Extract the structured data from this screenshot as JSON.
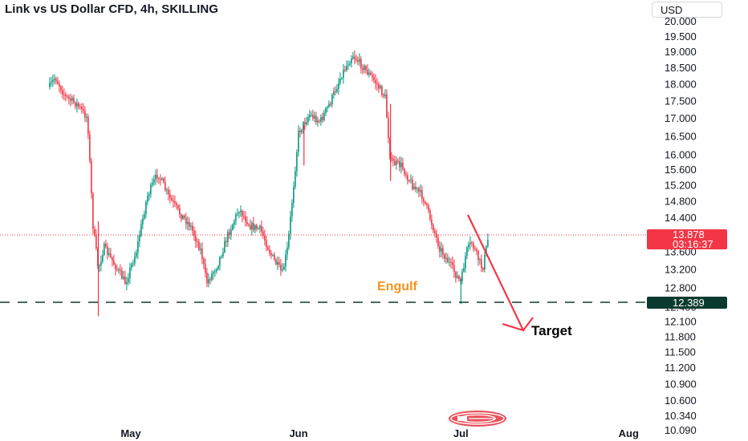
{
  "header": {
    "title": "Link vs US Dollar CFD, 4h, SKILLING",
    "currency_button": "USD"
  },
  "chart_data": {
    "type": "candlestick",
    "title": "Link vs US Dollar CFD, 4h, SKILLING",
    "y_tick_labels": [
      "20.000",
      "19.500",
      "19.000",
      "18.500",
      "18.000",
      "17.500",
      "17.000",
      "16.500",
      "16.000",
      "15.600",
      "15.200",
      "14.800",
      "14.400",
      "14.000",
      "13.600",
      "13.200",
      "12.800",
      "12.400",
      "12.100",
      "11.800",
      "11.500",
      "11.200",
      "10.900",
      "10.600",
      "10.340",
      "10.090"
    ],
    "x_tick_labels": [
      "May",
      "Jun",
      "Jul",
      "Aug"
    ],
    "current_price": {
      "label": "13.878",
      "countdown": "03:16:37",
      "value": 13.878
    },
    "support_level": {
      "label": "12.389",
      "value": 12.389
    },
    "annotations": {
      "pattern_label": "Engulf",
      "target_label": "Target"
    },
    "price_path": [
      {
        "date": "2024-04-16",
        "price": 17.9
      },
      {
        "date": "2024-04-17",
        "price": 18.2
      },
      {
        "date": "2024-04-19",
        "price": 17.6
      },
      {
        "date": "2024-04-21",
        "price": 17.4
      },
      {
        "date": "2024-04-23",
        "price": 17.0
      },
      {
        "date": "2024-04-24",
        "price": 14.2
      },
      {
        "date": "2024-04-25",
        "price": 13.2
      },
      {
        "date": "2024-04-26",
        "price": 13.7
      },
      {
        "date": "2024-04-28",
        "price": 13.3
      },
      {
        "date": "2024-04-30",
        "price": 12.9
      },
      {
        "date": "2024-05-02",
        "price": 13.6
      },
      {
        "date": "2024-05-04",
        "price": 14.9
      },
      {
        "date": "2024-05-06",
        "price": 15.5
      },
      {
        "date": "2024-05-08",
        "price": 14.9
      },
      {
        "date": "2024-05-10",
        "price": 14.5
      },
      {
        "date": "2024-05-12",
        "price": 14.2
      },
      {
        "date": "2024-05-14",
        "price": 13.6
      },
      {
        "date": "2024-05-15",
        "price": 12.9
      },
      {
        "date": "2024-05-17",
        "price": 13.3
      },
      {
        "date": "2024-05-19",
        "price": 14.0
      },
      {
        "date": "2024-05-21",
        "price": 14.6
      },
      {
        "date": "2024-05-23",
        "price": 14.2
      },
      {
        "date": "2024-05-25",
        "price": 14.1
      },
      {
        "date": "2024-05-27",
        "price": 13.5
      },
      {
        "date": "2024-05-29",
        "price": 13.1
      },
      {
        "date": "2024-05-30",
        "price": 13.7
      },
      {
        "date": "2024-06-01",
        "price": 16.6
      },
      {
        "date": "2024-06-03",
        "price": 17.1
      },
      {
        "date": "2024-06-05",
        "price": 16.9
      },
      {
        "date": "2024-06-07",
        "price": 17.5
      },
      {
        "date": "2024-06-09",
        "price": 18.3
      },
      {
        "date": "2024-06-11",
        "price": 18.9
      },
      {
        "date": "2024-06-13",
        "price": 18.5
      },
      {
        "date": "2024-06-15",
        "price": 18.1
      },
      {
        "date": "2024-06-17",
        "price": 17.6
      },
      {
        "date": "2024-06-18",
        "price": 15.8
      },
      {
        "date": "2024-06-20",
        "price": 15.7
      },
      {
        "date": "2024-06-22",
        "price": 15.2
      },
      {
        "date": "2024-06-24",
        "price": 14.9
      },
      {
        "date": "2024-06-26",
        "price": 14.1
      },
      {
        "date": "2024-06-27",
        "price": 13.7
      },
      {
        "date": "2024-06-29",
        "price": 13.3
      },
      {
        "date": "2024-07-01",
        "price": 12.9
      },
      {
        "date": "2024-07-02",
        "price": 13.6
      },
      {
        "date": "2024-07-03",
        "price": 13.8
      },
      {
        "date": "2024-07-05",
        "price": 13.2
      },
      {
        "date": "2024-07-06",
        "price": 13.878
      }
    ],
    "colors": {
      "up": "#089981",
      "down": "#f23645",
      "arrow": "#f23645",
      "support": "#0b3b30",
      "engulf": "#f7931a"
    },
    "grid": false,
    "price_scale": "log"
  }
}
